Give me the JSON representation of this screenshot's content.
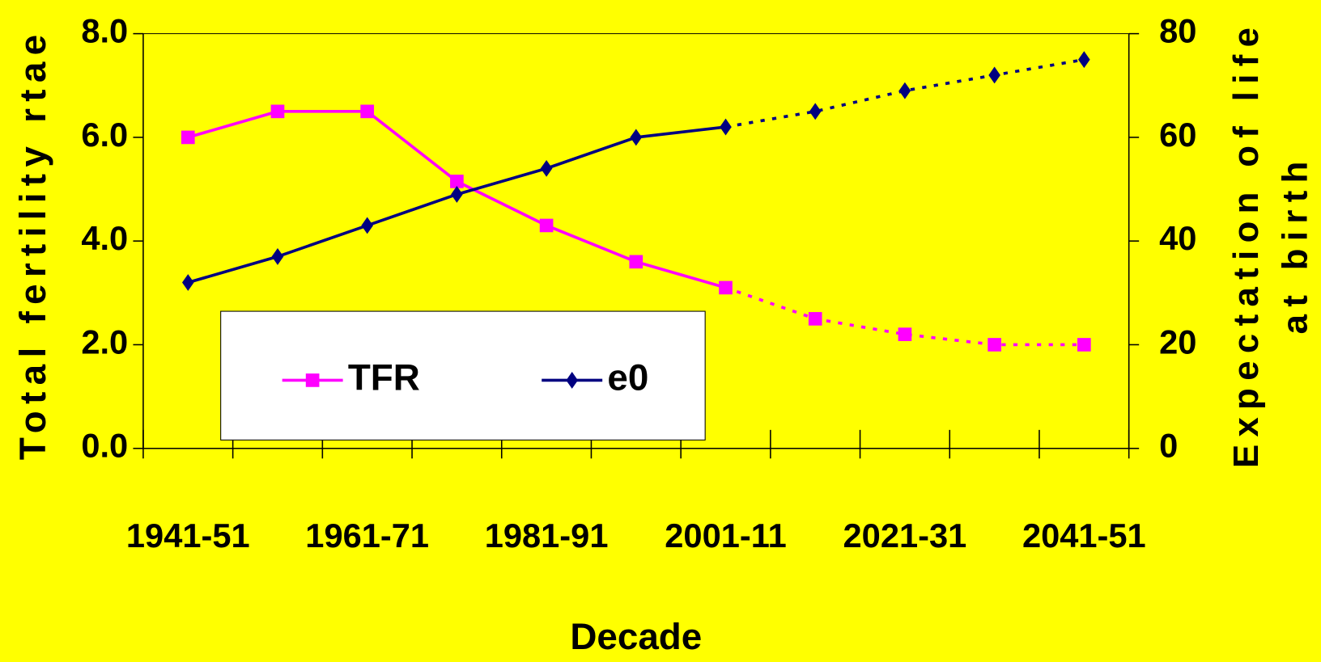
{
  "chart_data": {
    "type": "line",
    "categories": [
      "1941-51",
      null,
      "1961-71",
      null,
      "1981-91",
      null,
      "2001-11",
      null,
      "2021-31",
      null,
      "2041-51"
    ],
    "series": [
      {
        "name": "TFR",
        "color": "#ff00ff",
        "marker": "square",
        "dotted_from_index": 6,
        "values": [
          6.0,
          6.5,
          6.5,
          5.15,
          4.3,
          3.6,
          3.1,
          2.5,
          2.2,
          2.0,
          2.0
        ]
      },
      {
        "name": "e0",
        "color": "#000080",
        "marker": "diamond",
        "dotted_from_index": 6,
        "axis": "y2",
        "values": [
          32,
          37,
          43,
          49,
          54,
          60,
          62,
          65,
          69,
          72,
          75
        ]
      }
    ],
    "ylim": [
      0,
      8
    ],
    "yticks": [
      {
        "value": 0,
        "label": "0.0"
      },
      {
        "value": 2,
        "label": "2.0"
      },
      {
        "value": 4,
        "label": "4.0"
      },
      {
        "value": 6,
        "label": "6.0"
      },
      {
        "value": 8,
        "label": "8.0"
      }
    ],
    "y2lim": [
      0,
      80
    ],
    "y2ticks": [
      0,
      20,
      40,
      60,
      80
    ],
    "y_label": "Total fertility rtae",
    "y2_label": [
      "Expectation of life",
      "at birth"
    ],
    "x_label": "Decade",
    "background": "#ffff00",
    "legend": "bottom-left"
  }
}
